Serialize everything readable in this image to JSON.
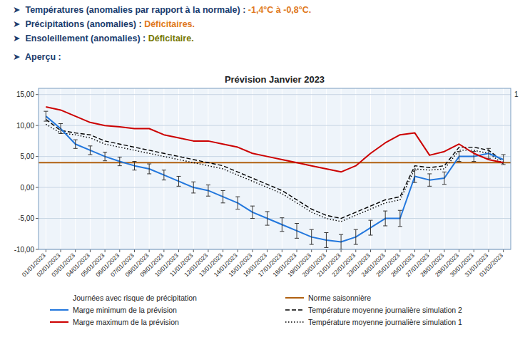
{
  "chart_data": {
    "type": "line",
    "title": "Prévision Janvier 2023",
    "header_lines": [
      [
        {
          "text": "➤  ",
          "color": "#1a3c6e"
        },
        {
          "text": "Températures (anomalies par rapport à la normale) : ",
          "color": "#1a3c6e"
        },
        {
          "text": "-1,4°C à -0,8°C.",
          "color": "#e07820"
        }
      ],
      [
        {
          "text": "➤  ",
          "color": "#1a3c6e"
        },
        {
          "text": "Précipitations (anomalies) : ",
          "color": "#1a3c6e"
        },
        {
          "text": "Déficitaires.",
          "color": "#e07820"
        }
      ],
      [
        {
          "text": "➤  ",
          "color": "#1a3c6e"
        },
        {
          "text": "Ensoleillement (anomalies) : ",
          "color": "#1a3c6e"
        },
        {
          "text": "Déficitaire.",
          "color": "#777700"
        }
      ],
      [
        {
          "text": "➤  ",
          "color": "#1a3c6e"
        },
        {
          "text": "Aperçu :",
          "color": "#1a3c6e"
        }
      ]
    ],
    "categories": [
      "01/01/2023",
      "02/01/2023",
      "03/01/2023",
      "04/01/2023",
      "05/01/2023",
      "06/01/2023",
      "07/01/2023",
      "08/01/2023",
      "09/01/2023",
      "10/01/2023",
      "11/01/2023",
      "12/01/2023",
      "13/01/2023",
      "14/01/2023",
      "15/01/2023",
      "16/01/2023",
      "17/01/2023",
      "18/01/2023",
      "19/01/2023",
      "20/01/2023",
      "21/01/2023",
      "22/01/2023",
      "23/01/2023",
      "24/01/2023",
      "25/01/2023",
      "26/01/2023",
      "27/01/2023",
      "28/01/2023",
      "29/01/2023",
      "30/01/2023",
      "31/01/2023",
      "01/02/2023"
    ],
    "series": [
      {
        "name": "Marge minimum de la prévision",
        "color": "#2277dd",
        "line_style": "solid",
        "values": [
          11.5,
          9.5,
          7.0,
          6.0,
          5.0,
          4.2,
          3.5,
          3.0,
          2.0,
          1.0,
          0.0,
          -0.5,
          -1.5,
          -2.5,
          -4.0,
          -5.0,
          -6.0,
          -7.0,
          -8.0,
          -8.5,
          -8.8,
          -8.0,
          -6.5,
          -5.0,
          -5.0,
          1.8,
          1.2,
          1.5,
          5.0,
          5.0,
          5.5,
          4.5
        ],
        "errors": [
          0.8,
          0.8,
          0.7,
          0.7,
          0.7,
          0.7,
          0.7,
          0.8,
          0.8,
          0.8,
          0.9,
          0.9,
          1.0,
          1.0,
          1.0,
          1.1,
          1.1,
          1.2,
          1.2,
          1.2,
          1.2,
          1.2,
          1.2,
          1.2,
          1.3,
          1.0,
          1.0,
          1.0,
          0.8,
          0.8,
          0.8,
          0.8
        ]
      },
      {
        "name": "Marge maximum de la prévision",
        "color": "#cc0000",
        "line_style": "solid",
        "values": [
          13.0,
          12.5,
          11.5,
          10.5,
          10.0,
          9.8,
          9.5,
          9.5,
          8.5,
          8.0,
          7.5,
          7.5,
          7.0,
          6.5,
          5.5,
          5.0,
          4.5,
          4.0,
          3.5,
          3.0,
          2.5,
          3.5,
          5.5,
          7.2,
          8.5,
          8.8,
          5.2,
          5.8,
          7.0,
          5.5,
          4.5,
          4.0
        ]
      },
      {
        "name": "Température moyenne journalière simulation 2",
        "color": "#000000",
        "line_style": "dashed",
        "values": [
          11.0,
          9.2,
          8.8,
          8.5,
          7.5,
          7.0,
          6.5,
          6.0,
          5.5,
          5.0,
          4.5,
          4.0,
          3.5,
          2.5,
          1.5,
          0.5,
          -0.5,
          -2.0,
          -3.5,
          -4.5,
          -5.0,
          -4.0,
          -3.0,
          -2.0,
          -1.5,
          3.5,
          3.2,
          3.5,
          6.5,
          6.5,
          6.0,
          4.2
        ]
      },
      {
        "name": "Température moyenne journalière simulation 1",
        "color": "#000000",
        "line_style": "dotted",
        "values": [
          10.2,
          8.8,
          8.5,
          8.0,
          7.0,
          6.5,
          6.0,
          5.5,
          5.0,
          4.5,
          4.0,
          3.5,
          3.0,
          2.0,
          1.0,
          0.0,
          -1.0,
          -2.5,
          -4.0,
          -5.0,
          -5.5,
          -4.5,
          -3.5,
          -2.5,
          -2.0,
          3.0,
          2.8,
          3.0,
          6.0,
          6.0,
          5.5,
          3.8
        ]
      }
    ],
    "reference_lines": [
      {
        "name": "Norme saisonnière",
        "value": 4.0,
        "color": "#b06010"
      }
    ],
    "legend_note": "Journées avec risque de précipitation",
    "annotations": [
      {
        "text": "1",
        "y": 15
      }
    ],
    "ylim": [
      -10,
      16
    ],
    "yticks": [
      {
        "value": -10.0,
        "label": "-10,00"
      },
      {
        "value": -5.0,
        "label": "-5,00"
      },
      {
        "value": 0.0,
        "label": "0,00"
      },
      {
        "value": 5.0,
        "label": "5,00"
      },
      {
        "value": 10.0,
        "label": "10,00"
      },
      {
        "value": 15.0,
        "label": "15,00"
      }
    ],
    "grid": true,
    "legend": "bottom"
  }
}
